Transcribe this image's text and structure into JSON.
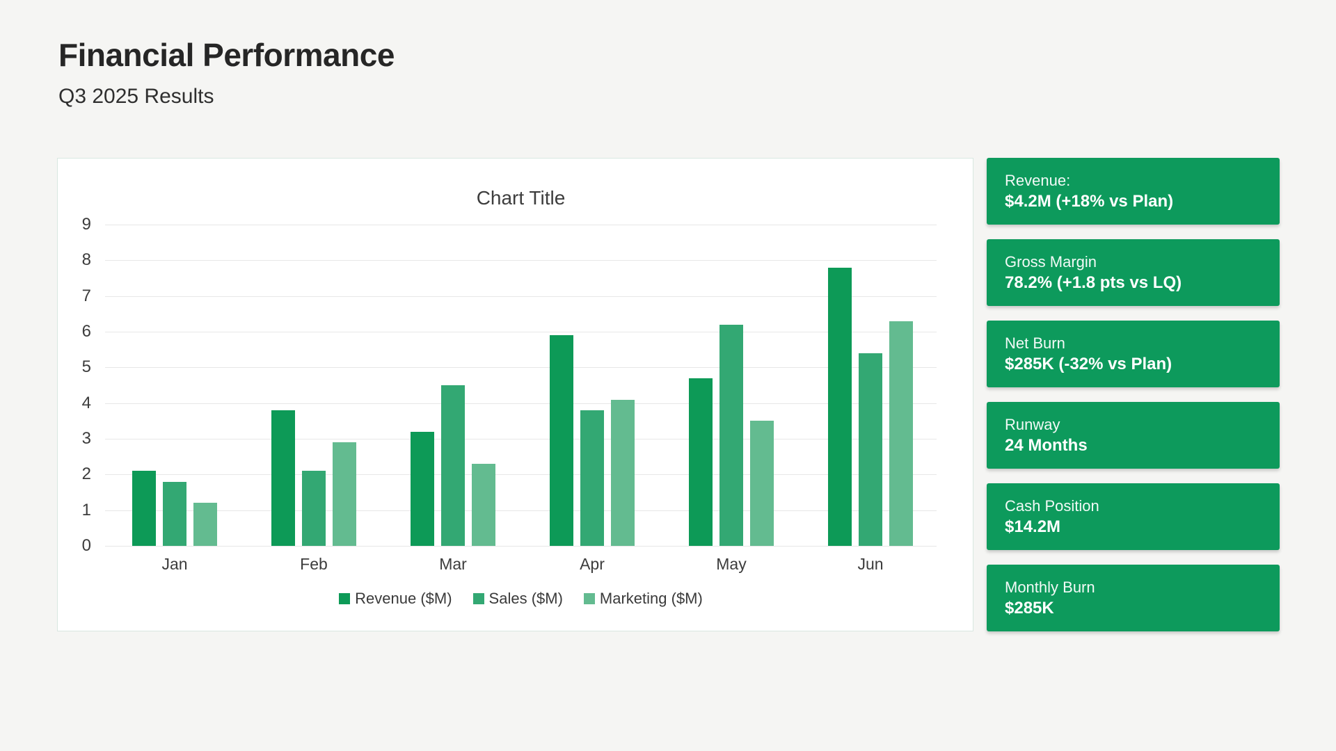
{
  "page": {
    "title": "Financial Performance",
    "subtitle": "Q3 2025 Results"
  },
  "chart_data": {
    "type": "bar",
    "title": "Chart Title",
    "categories": [
      "Jan",
      "Feb",
      "Mar",
      "Apr",
      "May",
      "Jun"
    ],
    "series": [
      {
        "name": "Revenue ($M)",
        "color": "#0d9a57",
        "values": [
          2.1,
          3.8,
          3.2,
          5.9,
          4.7,
          7.8
        ]
      },
      {
        "name": "Sales ($M)",
        "color": "#33a873",
        "values": [
          1.8,
          2.1,
          4.5,
          3.8,
          6.2,
          5.4
        ]
      },
      {
        "name": "Marketing ($M)",
        "color": "#63bb90",
        "values": [
          1.2,
          2.9,
          2.3,
          4.1,
          3.5,
          6.3
        ]
      }
    ],
    "ylim": [
      0,
      9
    ],
    "ytick_step": 1,
    "grid": true,
    "legend_position": "bottom"
  },
  "kpi_cards": [
    {
      "label": "Revenue:",
      "value": "$4.2M (+18% vs Plan)"
    },
    {
      "label": "Gross Margin",
      "value": "78.2% (+1.8 pts vs LQ)"
    },
    {
      "label": "Net Burn",
      "value": "$285K (-32% vs Plan)"
    },
    {
      "label": "Runway",
      "value": "24 Months"
    },
    {
      "label": "Cash Position",
      "value": "$14.2M"
    },
    {
      "label": "Monthly Burn",
      "value": "$285K"
    }
  ],
  "colors": {
    "card_bg": "#0d9a5c",
    "page_bg": "#f5f5f3",
    "panel_border": "#d8e7e0"
  }
}
